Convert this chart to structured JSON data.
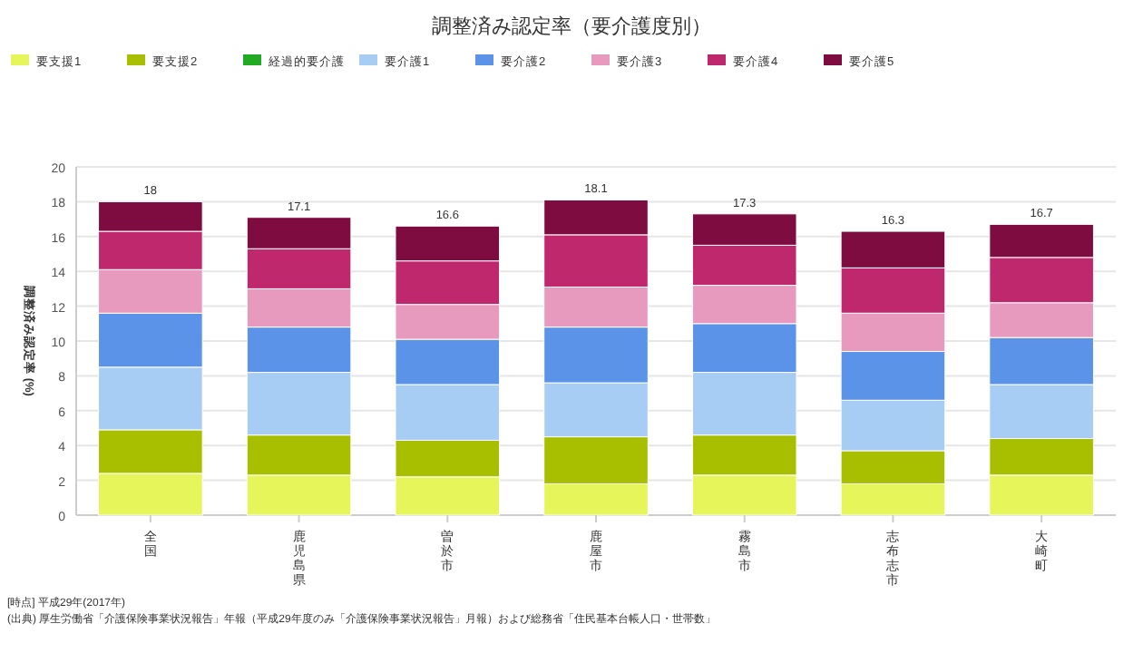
{
  "chart_data": {
    "type": "bar",
    "stacked": true,
    "title": "調整済み認定率（要介護度別）",
    "ylabel": "調整済み認定率 (%)",
    "categories": [
      "全国",
      "鹿児島県",
      "曽於市",
      "鹿屋市",
      "霧島市",
      "志布志市",
      "大崎町"
    ],
    "series": [
      {
        "name": "要支援1",
        "color": "#e5f55a",
        "values": [
          2.4,
          2.3,
          2.2,
          1.8,
          2.3,
          1.8,
          2.3
        ]
      },
      {
        "name": "要支援2",
        "color": "#a8bf00",
        "values": [
          2.5,
          2.3,
          2.1,
          2.7,
          2.3,
          1.9,
          2.1
        ]
      },
      {
        "name": "経過的要介護",
        "color": "#22aa22",
        "values": [
          0,
          0,
          0,
          0,
          0,
          0,
          0
        ]
      },
      {
        "name": "要介護1",
        "color": "#a8cdf5",
        "values": [
          3.6,
          3.6,
          3.2,
          3.1,
          3.6,
          2.9,
          3.1
        ]
      },
      {
        "name": "要介護2",
        "color": "#5a93e8",
        "values": [
          3.1,
          2.6,
          2.6,
          3.2,
          2.8,
          2.8,
          2.7
        ]
      },
      {
        "name": "要介護3",
        "color": "#e899be",
        "values": [
          2.5,
          2.2,
          2.0,
          2.3,
          2.2,
          2.2,
          2.0
        ]
      },
      {
        "name": "要介護4",
        "color": "#c0286e",
        "values": [
          2.2,
          2.3,
          2.5,
          3.0,
          2.3,
          2.6,
          2.6
        ]
      },
      {
        "name": "要介護5",
        "color": "#7e0c40",
        "values": [
          1.7,
          1.8,
          2.0,
          2.0,
          1.8,
          2.1,
          1.9
        ]
      }
    ],
    "totals": [
      "18",
      "17.1",
      "16.6",
      "18.1",
      "17.3",
      "16.3",
      "16.7"
    ],
    "ylim": [
      0,
      20
    ],
    "yticks": [
      0,
      2,
      4,
      6,
      8,
      10,
      12,
      14,
      16,
      18,
      20
    ],
    "grid": "y",
    "legend": "top left",
    "annotations": [
      "[時点]  平成29年(2017年)",
      "(出典)  厚生労働省「介護保険事業状況報告」年報（平成29年度のみ「介護保険事業状況報告」月報）および総務省「住民基本台帳人口・世帯数」"
    ]
  }
}
